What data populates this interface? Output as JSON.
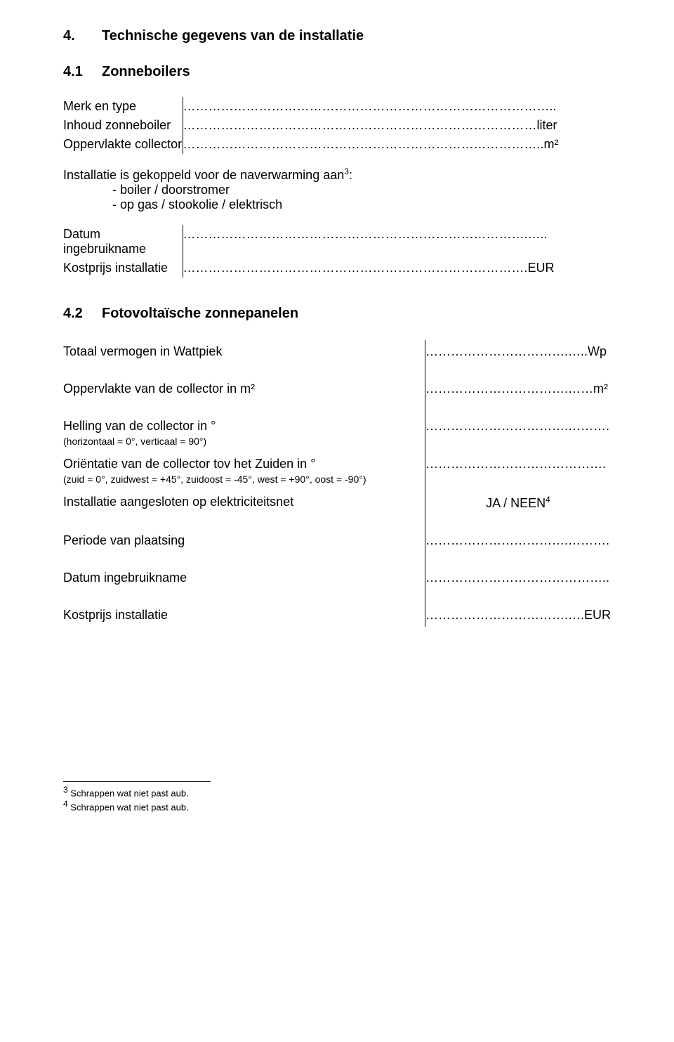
{
  "section": {
    "num": "4.",
    "title": "Technische gegevens van de installatie"
  },
  "sub1": {
    "num": "4.1",
    "title": "Zonneboilers"
  },
  "zonneboilers": {
    "row1_label": "Merk en type",
    "row1_dots": "……………………………………………………………………………..",
    "row2_label": "Inhoud zonneboiler",
    "row2_dots": "…………………………………………………………………………liter",
    "row3_label": "Oppervlakte collector",
    "row3_dots": "…………………………………………………………………………..m²",
    "install_line": "Installatie is gekoppeld voor de naverwarming aan",
    "install_sup": "3",
    "install_colon": ":",
    "dash1": "- boiler / doorstromer",
    "dash2": "- op gas / stookolie / elektrisch",
    "row4_label": "Datum ingebruikname",
    "row4_dots": "……………………………………………………………………….…..",
    "row5_label": "Kostprijs installatie",
    "row5_dots": "……………………………………………………………………….EUR"
  },
  "sub2": {
    "num": "4.2",
    "title": "Fotovoltaïsche zonnepanelen"
  },
  "pv": {
    "q1": "Totaal vermogen in Wattpiek",
    "a1": "…………………………….…..Wp",
    "q2": "Oppervlakte van de collector in m²",
    "a2": "…………………………….……m²",
    "q3": "Helling van de collector in °",
    "q3_small": "(horizontaal = 0°, verticaal = 90°)",
    "a3": "…………………………….……….",
    "q4": "Oriëntatie van de collector tov het Zuiden in °",
    "q4_small": "(zuid = 0°, zuidwest = +45°, zuidoost = -45°, west = +90°, oost = -90°)",
    "a4": "…………………………………….",
    "q5": "Installatie aangesloten op elektriciteitsnet",
    "a5_prefix": "JA / NEEN",
    "a5_sup": "4",
    "q6": "Periode van plaatsing",
    "a6": "…………………………….……….",
    "q7": "Datum ingebruikname",
    "a7": "……………………………………..",
    "q8": "Kostprijs installatie",
    "a8": "…………………………….….EUR"
  },
  "footnotes": {
    "f3_num": "3",
    "f3_text": " Schrappen wat niet past aub.",
    "f4_num": "4",
    "f4_text": " Schrappen wat niet past aub."
  }
}
